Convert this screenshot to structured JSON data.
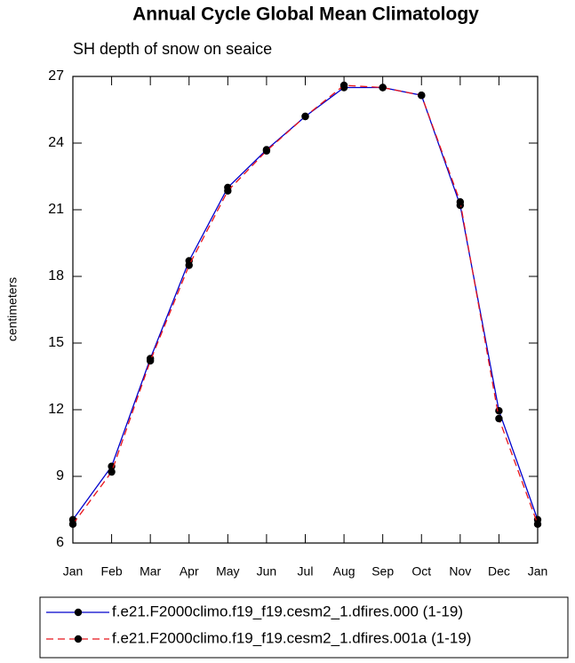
{
  "chart_data": {
    "type": "line",
    "title": "Annual Cycle Global Mean Climatology",
    "subtitle": "SH depth of snow on seaice",
    "y_label": "centimeters",
    "categories": [
      "Jan",
      "Feb",
      "Mar",
      "Apr",
      "May",
      "Jun",
      "Jul",
      "Aug",
      "Sep",
      "Oct",
      "Nov",
      "Dec",
      "Jan"
    ],
    "series": [
      {
        "name": "f.e21.F2000climo.f19_f19.cesm2_1.dfires.000 (1-19)",
        "color": "#0000cc",
        "dash": false,
        "values": [
          7.05,
          9.45,
          14.3,
          18.7,
          22.0,
          23.7,
          25.2,
          26.5,
          26.5,
          26.15,
          21.2,
          11.95,
          7.05
        ]
      },
      {
        "name": "f.e21.F2000climo.f19_f19.cesm2_1.dfires.001a (1-19)",
        "color": "#e8141b",
        "dash": true,
        "values": [
          6.85,
          9.2,
          14.2,
          18.5,
          21.85,
          23.65,
          25.2,
          26.6,
          26.5,
          26.15,
          21.35,
          11.6,
          6.85
        ]
      }
    ],
    "ylim": [
      6,
      27
    ],
    "yticks": [
      6,
      9,
      12,
      15,
      18,
      21,
      24,
      27
    ]
  }
}
